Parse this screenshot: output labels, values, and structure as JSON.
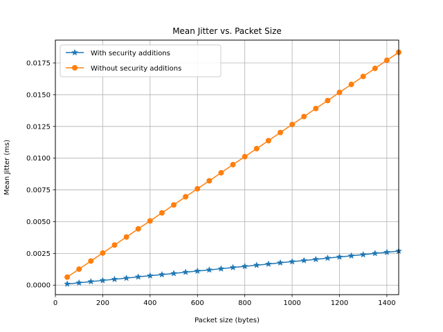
{
  "chart_data": {
    "type": "line",
    "title": "Mean Jitter vs. Packet Size",
    "xlabel": "Packet size (bytes)",
    "ylabel": "Mean Jitter (ms)",
    "xlim": [
      0,
      1450
    ],
    "ylim": [
      -0.00075,
      0.0193
    ],
    "grid": true,
    "legend_position": "top-left",
    "x_ticks": [
      0,
      200,
      400,
      600,
      800,
      1000,
      1200,
      1400
    ],
    "x_tick_labels": [
      "0",
      "200",
      "400",
      "600",
      "800",
      "1000",
      "1200",
      "1400"
    ],
    "y_ticks": [
      0.0,
      0.0025,
      0.005,
      0.0075,
      0.01,
      0.0125,
      0.015,
      0.0175
    ],
    "y_tick_labels": [
      "0.0000",
      "0.0025",
      "0.0050",
      "0.0075",
      "0.0100",
      "0.0125",
      "0.0150",
      "0.0175"
    ],
    "x": [
      50,
      100,
      150,
      200,
      250,
      300,
      350,
      400,
      450,
      500,
      550,
      600,
      650,
      700,
      750,
      800,
      850,
      900,
      950,
      1000,
      1050,
      1100,
      1150,
      1200,
      1250,
      1300,
      1350,
      1400,
      1450
    ],
    "series": [
      {
        "name": "With security additions",
        "color": "#1f77b4",
        "marker": "star",
        "values": [
          9e-05,
          0.00018,
          0.00028,
          0.00037,
          0.00046,
          0.00055,
          0.00065,
          0.00074,
          0.00083,
          0.00092,
          0.00102,
          0.00111,
          0.0012,
          0.00129,
          0.00139,
          0.00148,
          0.00157,
          0.00166,
          0.00176,
          0.00185,
          0.00194,
          0.00203,
          0.00213,
          0.00222,
          0.00231,
          0.0024,
          0.0025,
          0.00259,
          0.00268
        ]
      },
      {
        "name": "Without security additions",
        "color": "#ff7f0e",
        "marker": "circle",
        "values": [
          0.00063,
          0.00126,
          0.0019,
          0.00253,
          0.00316,
          0.00379,
          0.00443,
          0.00506,
          0.00569,
          0.00632,
          0.00696,
          0.00759,
          0.00822,
          0.00885,
          0.00949,
          0.01012,
          0.01075,
          0.01138,
          0.01202,
          0.01265,
          0.01328,
          0.01391,
          0.01454,
          0.01518,
          0.01581,
          0.01644,
          0.01707,
          0.01771,
          0.01834
        ]
      }
    ]
  }
}
